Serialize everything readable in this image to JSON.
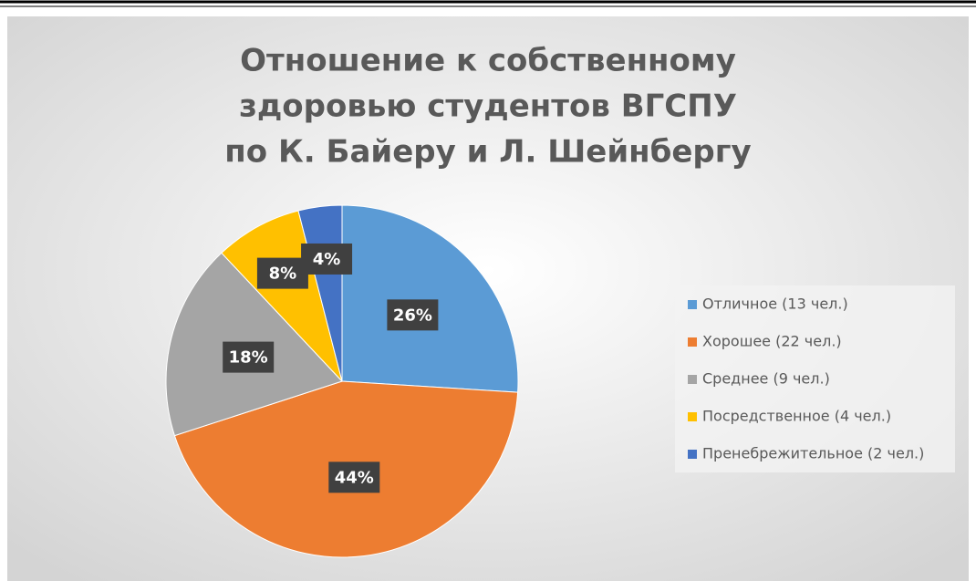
{
  "chart_data": {
    "type": "pie",
    "title": [
      "Отношение к собственному",
      "здоровью студентов ВГСПУ",
      "по К. Байеру и Л. Шейнбергу"
    ],
    "categories": [
      "Отличное (13 чел.)",
      "Хорошее (22 чел.)",
      "Среднее (9 чел.)",
      "Посредственное (4 чел.)",
      "Пренебрежительное (2 чел.)"
    ],
    "values": [
      26,
      44,
      18,
      8,
      4
    ],
    "value_labels": [
      "26%",
      "44%",
      "18%",
      "8%",
      "4%"
    ],
    "colors": [
      "#5b9bd5",
      "#ed7d31",
      "#a5a5a5",
      "#ffc000",
      "#4472c4"
    ],
    "legend": "right"
  }
}
